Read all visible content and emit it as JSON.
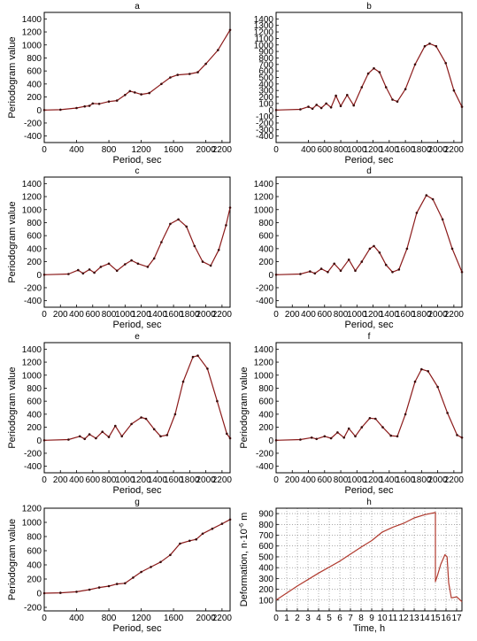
{
  "chart_data": [
    {
      "panel": "a",
      "type": "line",
      "title": "a",
      "xlabel": "Period, sec",
      "ylabel": "Periodogram value",
      "xlim": [
        0,
        2300
      ],
      "ylim": [
        -500,
        1500
      ],
      "xticks": [
        0,
        400,
        800,
        1200,
        1600,
        2000,
        2200
      ],
      "yticks": [
        -400,
        -200,
        0,
        200,
        400,
        600,
        800,
        1000,
        1200,
        1400
      ],
      "series": [
        {
          "color": "#8b1a1a",
          "marker": "dots",
          "points": [
            [
              0,
              0
            ],
            [
              200,
              5
            ],
            [
              400,
              30
            ],
            [
              500,
              55
            ],
            [
              560,
              65
            ],
            [
              600,
              100
            ],
            [
              680,
              95
            ],
            [
              800,
              130
            ],
            [
              900,
              145
            ],
            [
              1000,
              230
            ],
            [
              1060,
              290
            ],
            [
              1120,
              270
            ],
            [
              1200,
              240
            ],
            [
              1300,
              260
            ],
            [
              1450,
              400
            ],
            [
              1560,
              500
            ],
            [
              1650,
              540
            ],
            [
              1800,
              555
            ],
            [
              1900,
              580
            ],
            [
              2000,
              710
            ],
            [
              2150,
              920
            ],
            [
              2300,
              1230
            ]
          ]
        }
      ]
    },
    {
      "panel": "b",
      "type": "line",
      "title": "b",
      "xlabel": "Period, sec",
      "ylabel": "",
      "xlim": [
        0,
        2300
      ],
      "ylim": [
        -500,
        1500
      ],
      "xticks": [
        0,
        400,
        600,
        800,
        1000,
        1200,
        1400,
        1600,
        1800,
        2000,
        2200
      ],
      "yticks": [
        -400,
        -300,
        -200,
        -100,
        0,
        100,
        200,
        300,
        400,
        500,
        600,
        700,
        800,
        900,
        1000,
        1100,
        1200,
        1300,
        1400
      ],
      "series": [
        {
          "color": "#8b1a1a",
          "marker": "dots",
          "points": [
            [
              0,
              0
            ],
            [
              300,
              10
            ],
            [
              400,
              50
            ],
            [
              450,
              20
            ],
            [
              500,
              80
            ],
            [
              560,
              30
            ],
            [
              620,
              100
            ],
            [
              680,
              40
            ],
            [
              740,
              220
            ],
            [
              800,
              60
            ],
            [
              880,
              230
            ],
            [
              960,
              70
            ],
            [
              1060,
              350
            ],
            [
              1140,
              560
            ],
            [
              1210,
              640
            ],
            [
              1280,
              580
            ],
            [
              1360,
              350
            ],
            [
              1440,
              160
            ],
            [
              1500,
              130
            ],
            [
              1600,
              320
            ],
            [
              1720,
              700
            ],
            [
              1840,
              980
            ],
            [
              1900,
              1020
            ],
            [
              1980,
              980
            ],
            [
              2100,
              720
            ],
            [
              2200,
              300
            ],
            [
              2300,
              50
            ]
          ]
        }
      ]
    },
    {
      "panel": "c",
      "type": "line",
      "title": "c",
      "xlabel": "Period, sec",
      "ylabel": "Periodogram value",
      "xlim": [
        0,
        2300
      ],
      "ylim": [
        -500,
        1500
      ],
      "xticks": [
        0,
        200,
        400,
        600,
        800,
        1000,
        1200,
        1400,
        1600,
        1800,
        2000,
        2200
      ],
      "yticks": [
        -400,
        -200,
        0,
        200,
        400,
        600,
        800,
        1000,
        1200,
        1400
      ],
      "series": [
        {
          "color": "#8b1a1a",
          "marker": "dots",
          "points": [
            [
              0,
              0
            ],
            [
              300,
              10
            ],
            [
              420,
              70
            ],
            [
              480,
              20
            ],
            [
              560,
              80
            ],
            [
              620,
              30
            ],
            [
              700,
              120
            ],
            [
              800,
              170
            ],
            [
              900,
              60
            ],
            [
              1000,
              160
            ],
            [
              1080,
              220
            ],
            [
              1160,
              170
            ],
            [
              1280,
              120
            ],
            [
              1360,
              250
            ],
            [
              1450,
              500
            ],
            [
              1560,
              780
            ],
            [
              1660,
              850
            ],
            [
              1760,
              740
            ],
            [
              1860,
              440
            ],
            [
              1960,
              200
            ],
            [
              2060,
              140
            ],
            [
              2160,
              380
            ],
            [
              2250,
              760
            ],
            [
              2300,
              1030
            ]
          ]
        }
      ]
    },
    {
      "panel": "d",
      "type": "line",
      "title": "d",
      "xlabel": "Period, sec",
      "ylabel": "",
      "xlim": [
        0,
        2300
      ],
      "ylim": [
        -500,
        1500
      ],
      "xticks": [
        0,
        200,
        400,
        600,
        800,
        1000,
        1200,
        1400,
        1600,
        1800,
        2000,
        2200
      ],
      "yticks": [
        -400,
        -200,
        0,
        200,
        400,
        600,
        800,
        1000,
        1200,
        1400
      ],
      "series": [
        {
          "color": "#8b1a1a",
          "marker": "dots",
          "points": [
            [
              0,
              0
            ],
            [
              300,
              10
            ],
            [
              420,
              50
            ],
            [
              480,
              20
            ],
            [
              560,
              90
            ],
            [
              640,
              40
            ],
            [
              720,
              170
            ],
            [
              800,
              60
            ],
            [
              900,
              230
            ],
            [
              980,
              60
            ],
            [
              1060,
              200
            ],
            [
              1160,
              400
            ],
            [
              1210,
              440
            ],
            [
              1280,
              340
            ],
            [
              1360,
              150
            ],
            [
              1440,
              40
            ],
            [
              1520,
              80
            ],
            [
              1620,
              400
            ],
            [
              1740,
              950
            ],
            [
              1860,
              1220
            ],
            [
              1940,
              1160
            ],
            [
              2060,
              850
            ],
            [
              2180,
              400
            ],
            [
              2300,
              40
            ]
          ]
        }
      ]
    },
    {
      "panel": "e",
      "type": "line",
      "title": "e",
      "xlabel": "Period, sec",
      "ylabel": "Periodogram value",
      "xlim": [
        0,
        2300
      ],
      "ylim": [
        -500,
        1500
      ],
      "xticks": [
        0,
        200,
        400,
        600,
        800,
        1000,
        1200,
        1400,
        1600,
        1800,
        2000,
        2200
      ],
      "yticks": [
        -400,
        -200,
        0,
        200,
        400,
        600,
        800,
        1000,
        1200,
        1400
      ],
      "series": [
        {
          "color": "#8b1a1a",
          "marker": "dots",
          "points": [
            [
              0,
              0
            ],
            [
              300,
              10
            ],
            [
              440,
              60
            ],
            [
              500,
              20
            ],
            [
              560,
              90
            ],
            [
              640,
              30
            ],
            [
              720,
              130
            ],
            [
              800,
              50
            ],
            [
              880,
              220
            ],
            [
              960,
              60
            ],
            [
              1080,
              250
            ],
            [
              1200,
              350
            ],
            [
              1260,
              330
            ],
            [
              1360,
              170
            ],
            [
              1440,
              60
            ],
            [
              1520,
              80
            ],
            [
              1620,
              400
            ],
            [
              1720,
              900
            ],
            [
              1840,
              1280
            ],
            [
              1900,
              1300
            ],
            [
              2020,
              1100
            ],
            [
              2140,
              600
            ],
            [
              2260,
              100
            ],
            [
              2300,
              30
            ]
          ]
        }
      ]
    },
    {
      "panel": "f",
      "type": "line",
      "title": "f",
      "xlabel": "Period, sec",
      "ylabel": "Periodogram value",
      "xlim": [
        0,
        2300
      ],
      "ylim": [
        -500,
        1500
      ],
      "xticks": [
        0,
        200,
        400,
        600,
        800,
        1000,
        1200,
        1400,
        1600,
        1800,
        2000,
        2200
      ],
      "yticks": [
        -400,
        -200,
        0,
        200,
        400,
        600,
        800,
        1000,
        1200,
        1400
      ],
      "series": [
        {
          "color": "#8b1a1a",
          "marker": "dots",
          "points": [
            [
              0,
              0
            ],
            [
              300,
              10
            ],
            [
              440,
              40
            ],
            [
              500,
              20
            ],
            [
              600,
              60
            ],
            [
              680,
              30
            ],
            [
              760,
              120
            ],
            [
              840,
              40
            ],
            [
              900,
              180
            ],
            [
              980,
              60
            ],
            [
              1060,
              200
            ],
            [
              1160,
              340
            ],
            [
              1230,
              330
            ],
            [
              1320,
              200
            ],
            [
              1420,
              70
            ],
            [
              1500,
              60
            ],
            [
              1600,
              400
            ],
            [
              1720,
              900
            ],
            [
              1800,
              1090
            ],
            [
              1880,
              1060
            ],
            [
              2000,
              820
            ],
            [
              2120,
              420
            ],
            [
              2240,
              80
            ],
            [
              2300,
              40
            ]
          ]
        }
      ]
    },
    {
      "panel": "g",
      "type": "line",
      "title": "g",
      "xlabel": "Period, sec",
      "ylabel": "Periodogram value",
      "xlim": [
        0,
        2300
      ],
      "ylim": [
        -250,
        1200
      ],
      "xticks": [
        0,
        400,
        800,
        1200,
        1600,
        2000,
        2200
      ],
      "yticks": [
        -200,
        0,
        200,
        400,
        600,
        800,
        1000,
        1200
      ],
      "series": [
        {
          "color": "#8b1a1a",
          "marker": "dots",
          "points": [
            [
              0,
              0
            ],
            [
              200,
              5
            ],
            [
              400,
              20
            ],
            [
              560,
              50
            ],
            [
              680,
              80
            ],
            [
              800,
              100
            ],
            [
              900,
              130
            ],
            [
              1000,
              140
            ],
            [
              1100,
              220
            ],
            [
              1200,
              300
            ],
            [
              1320,
              370
            ],
            [
              1440,
              440
            ],
            [
              1560,
              540
            ],
            [
              1680,
              700
            ],
            [
              1800,
              740
            ],
            [
              1880,
              760
            ],
            [
              1960,
              840
            ],
            [
              2080,
              910
            ],
            [
              2200,
              980
            ],
            [
              2300,
              1040
            ]
          ]
        }
      ]
    },
    {
      "panel": "h",
      "type": "line",
      "title": "h",
      "xlabel": "Time, h",
      "ylabel": "Deformation, n·10⁻⁶ m",
      "xlim": [
        0,
        17.5
      ],
      "ylim": [
        0,
        950
      ],
      "xticks": [
        0,
        1,
        2,
        3,
        4,
        5,
        6,
        7,
        8,
        9,
        10,
        11,
        12,
        13,
        14,
        15,
        16,
        17
      ],
      "yticks": [
        100,
        200,
        300,
        400,
        500,
        600,
        700,
        800,
        900
      ],
      "grid": true,
      "series": [
        {
          "color": "#b03a2e",
          "marker": "line",
          "points": [
            [
              0,
              100
            ],
            [
              2,
              230
            ],
            [
              4,
              350
            ],
            [
              6,
              460
            ],
            [
              8,
              590
            ],
            [
              9,
              650
            ],
            [
              10,
              730
            ],
            [
              11,
              775
            ],
            [
              12,
              810
            ],
            [
              13,
              860
            ],
            [
              14,
              890
            ],
            [
              15,
              910
            ],
            [
              15,
              270
            ],
            [
              15.2,
              330
            ],
            [
              15.5,
              430
            ],
            [
              15.9,
              520
            ],
            [
              16.1,
              500
            ],
            [
              16.25,
              260
            ],
            [
              16.5,
              120
            ],
            [
              17,
              130
            ],
            [
              17.5,
              85
            ]
          ]
        }
      ]
    }
  ]
}
